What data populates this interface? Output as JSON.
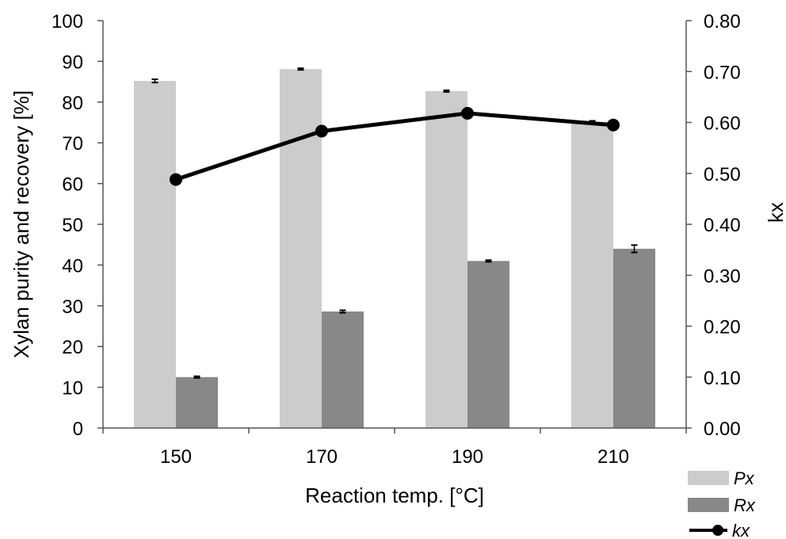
{
  "chart_data": {
    "type": "bar",
    "categories": [
      "150",
      "170",
      "190",
      "210"
    ],
    "xlabel": "Reaction temp. [°C]",
    "ylabel": "Xylan purity and recovery [%]",
    "y2label": "kx",
    "ylim": [
      0,
      100
    ],
    "y2lim": [
      0,
      0.8
    ],
    "yticks": [
      "0",
      "10",
      "20",
      "30",
      "40",
      "50",
      "60",
      "70",
      "80",
      "90",
      "100"
    ],
    "y2ticks": [
      "0.00",
      "0.10",
      "0.20",
      "0.30",
      "0.40",
      "0.50",
      "0.60",
      "0.70",
      "0.80"
    ],
    "grid": false,
    "legend_position": "bottom-right",
    "series": [
      {
        "name": "Px",
        "type": "bar",
        "axis": "left",
        "color": "#cccccc",
        "values": [
          85.2,
          88.1,
          82.7,
          75.2
        ],
        "errors": [
          0.4,
          0.2,
          0.2,
          0.2
        ]
      },
      {
        "name": "Rx",
        "type": "bar",
        "axis": "left",
        "color": "#888888",
        "values": [
          12.5,
          28.6,
          41.0,
          44.0
        ],
        "errors": [
          0.2,
          0.3,
          0.2,
          0.9
        ]
      },
      {
        "name": "kx",
        "type": "line",
        "axis": "right",
        "color": "#000000",
        "values": [
          0.488,
          0.583,
          0.618,
          0.595
        ]
      }
    ]
  }
}
